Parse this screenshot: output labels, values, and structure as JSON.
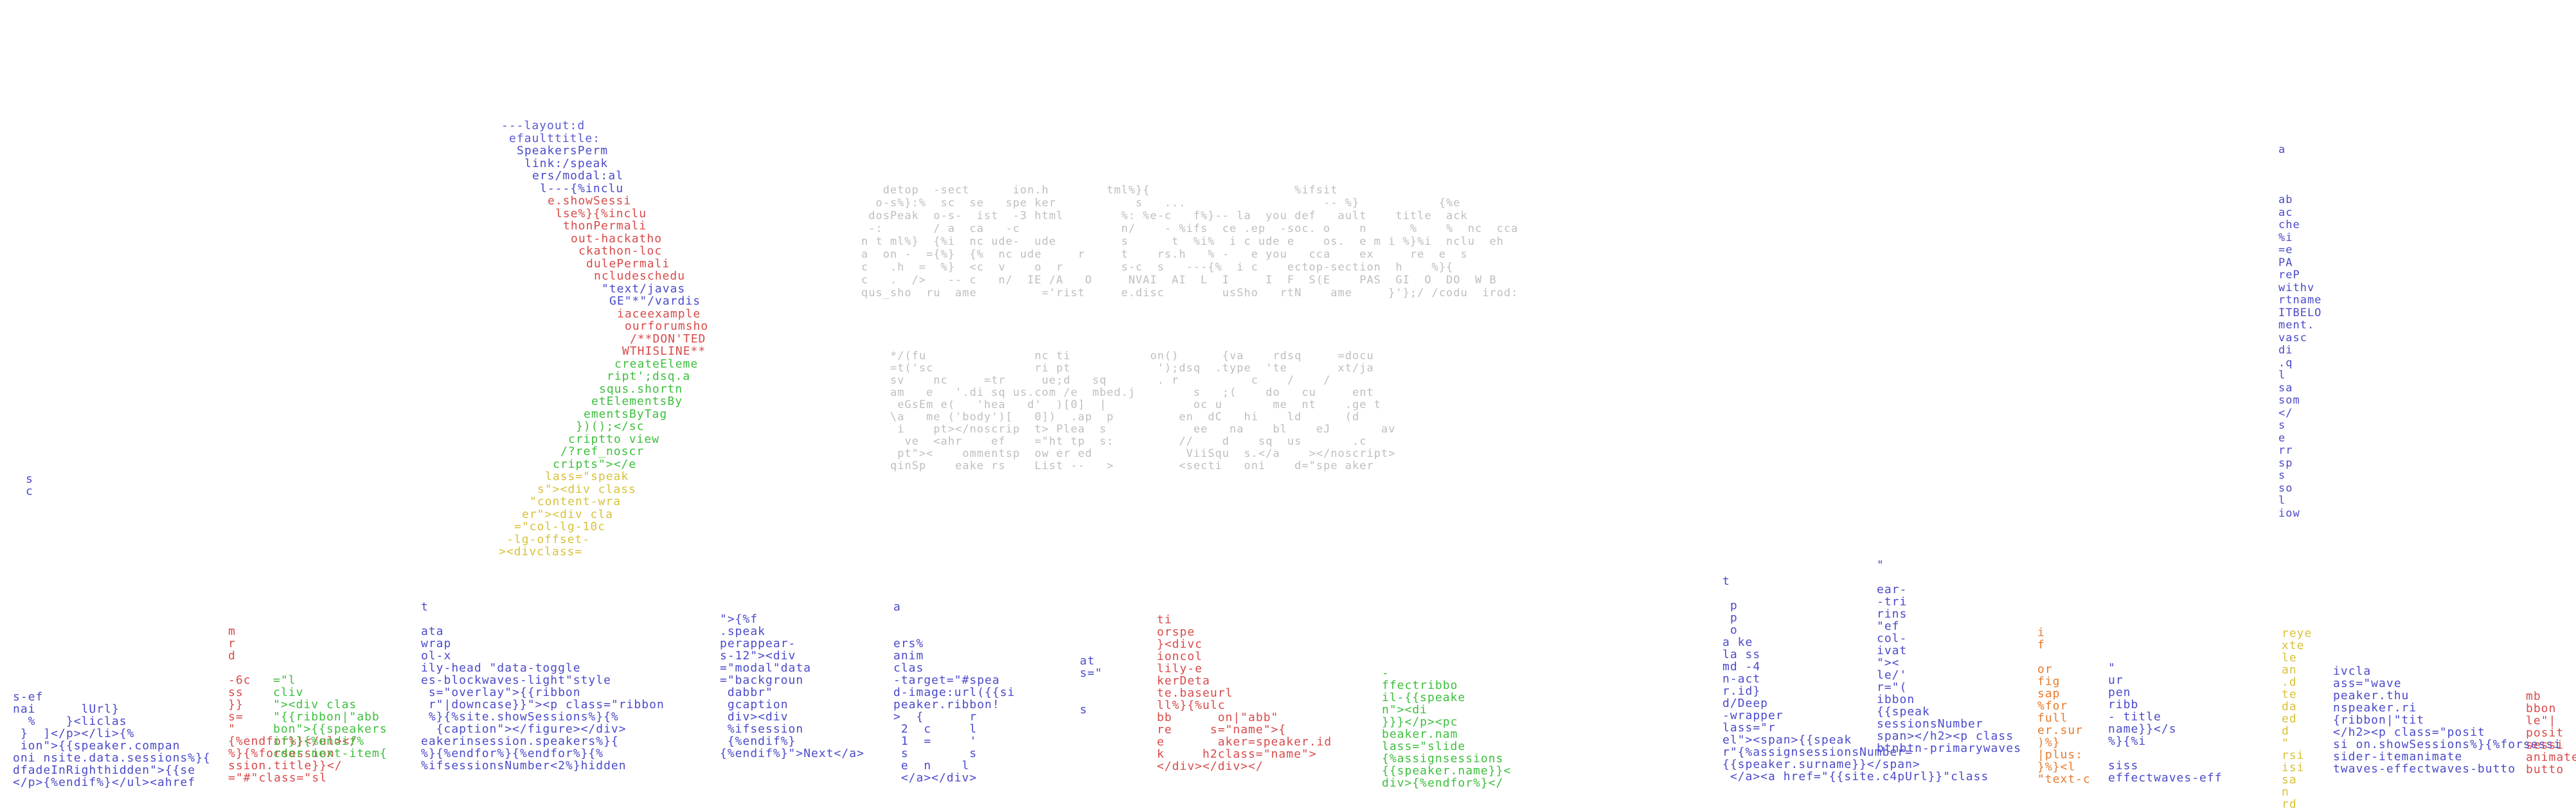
{
  "art": {
    "left_letters": "s\nc",
    "diagonal_code": [
      "---layout:d",
      "efaulttitle:",
      "SpeakersPerm",
      "link:/speak",
      "ers/modal:al",
      "l---{%inclu",
      "e.showSessi",
      "lse%}{%inclu",
      "thonPermali",
      "out-hackatho",
      "ckathon-loc",
      "dulePermali",
      "ncludeschedu",
      "\"text/javas",
      "GE\"*\"/vardis",
      "iaceexample",
      "ourforumsho",
      "/**DON'TED",
      "WTHISLINE**",
      "createEleme",
      "ript';dsq.a",
      "squs.shortn",
      "etElementsBy",
      "ementsByTag",
      "})();</sc",
      "criptto view",
      "/?ref_noscr",
      "cripts\"></e",
      "lass=\"speak",
      "s\"><div class",
      "\"content-wra",
      "er\"><div cla",
      "=\"col-lg-10c",
      "-lg-offset-",
      "><divclass="
    ],
    "block_top": [
      "   detop  -sect      ion.h        tml%}{                    %ifsit",
      "  o-s%}:%  sc  se   spe ker           s   ...                   -- %}           {%e",
      " dosPeak  o-s-  ist  -3 html        %: %e-c   f%}-- la  you def   ault    title  ack",
      " -:       / a  ca   -c              n/    - %ifs  ce .ep  -soc. o    n      %    %  nc  cca",
      "n t ml%}  {%i  nc ude-  ude         s      t  %i%  i c ude e    os.  e m i %}%i  nclu  eh",
      "a  on -  ={%}  {%  nc ude     r     t    rs.h   % -   e you   cca    ex     re  e  s",
      "c   .h  =  %}  <c  v    o  r        s-c  s   ---{%  i c    ectop-section  h    %}{",
      "c   .  />   -- c   n/  IE /A   O     NVAI  AI  L  I     I  F  S(E    PAS  GI  O  DO  W B",
      "qus_sho  ru  ame         ='rist     e.disc        usSho   rtN    ame     }'};/ /codu  irod:"
    ],
    "block_bottom": [
      "*/(fu               nc ti           on()      {va    rdsq     =docu",
      "=t('sc              ri pt            ');dsq  .type  'te       xt/ja",
      "sv    nc     =tr     ue;d   sq       . r          c    /    /",
      "am   e   '.di sq us.com /e  mbed.j        s   ;(    do   cu     ent",
      " eGsEm e(   'hea   d'  )[0]  |            oc u       me  nt    .ge t",
      "\\a   me ('body')[   0])  .ap  p         en  dC   hi    ld      (d",
      " i    pt></noscrip  t> Plea  s            ee   na    bl    eJ       av",
      "  ve  <ahr    ef    =\"ht tp  s:         //    d    sq  us       .c",
      " pt\"><    ommentsp  ow er ed             ViiSqu  s.</a    ></noscript>",
      "qinSp    eake rs    List --   >         <secti   oni    d=\"spe aker"
    ],
    "right_column": "a\n\n\n\nab\nac\nche\n%i\n=e\nPA\nreP\nwithv\nrtname\nITBELO\nment.\nvasc\ndi\n.q\nl\nsa\nsom\n</\ns\ne\nrr\nsp\ns\nso\nl\niow",
    "footer_cols": {
      "c1": "s-ef\nnai      lUrl}\n  %    }<liclas\n }  ]</p></li>{%\n ion\">{{speaker.compan\noni nsite.data.sessions%}{\ndfadeInRighthidden\">{{se\n</p>{%endif%}</ul><ahref",
      "c2": "\n\nm\nr\nd\n\n-6c\nss\n}}\ns=\n\"\n{%endfor%}</ul></\n%}{%forsession\nssion.title}}</\n=\"#\"class=\"sl",
      "c3": "\n\n\n\n\n\n=\"l\ncliv\n\"><div clas\n\"{{ribbon|\"abb\nbon\">{{speakers\nif}}{%endif%\ncdor-next-item{",
      "c4": "t\n\nata\nwrap\nol-x\nily-head \"data-toggle\nes-blockwaves-light\"style\n s=\"overlay\">{{ribbon\n r\"|downcase}}\"><p class=\"ribbon\n %}{%site.showSessions%}{%\n  {caption\"></figure></div>\neakerinsession.speakers%}{\n%}{%endfor%}{%endfor%}{%\n%ifsessionsNumber<2%}hidden",
      "c5": "\n\">{%f\n.speak\nperappear-\ns-12\"><div\n=\"modal\"data\n=\"backgroun\n dabbr\"\n gcaption\n div><div\n %ifsession\n {%endif%}\n{%endif%}\">Next</a>",
      "c6": "a\n\n\ners%\nanim\nclas\n-target=\"#spea\nd-image:url({{si\npeaker.ribbon!\n>  {      r\n 2  c     l\n 1  =     '\n s        s\n e  n    l\n </a></div>",
      "c7": "\nat\ns=\"\n\n\ns\n\n\n\n\n\n\n\n",
      "c8": "ti\norspe\n}<divc\nioncol\nlily-e\nkerDeta\nte.baseurl\nll%}{%ulc\nbb      on|\"abb\"\nre     s=\"name\">{\ne       aker=speaker.id\nk     h2class=\"name\">\n</div></div></",
      "c9": "\n\n-\nffectribbo\nil-{{speake\nn\"><di\n}}}</p><pc\nbeaker.nam\nlass=\"slide\n{%assignsessions\n{{speaker.name}}<\ndiv>{%endfor%}</",
      "c10": "t\n\n p\n p\n o\na ke\nla ss\nmd -4\nn-act\nr.id}\nd/Deep\n-wrapper\nlass=\"r\nel\"><span>{{speak\nr\"{%assignsessionsNumber=\n{{speaker.surname}}</span>\n </a><a href=\"{{site.c4pUrl}}\"class",
      "c11": "\"\n\near-\n-tri\nrins\n\"ef\ncol-\nivat\n\"><\nle/'\nr=\"(\nibbon\n{{speak\nsessionsNumber\nspan></h2><p class\nbtnbtn-primarywaves",
      "c12": "i\nf\n\nor\nfig\nsap\n%for\nfull\ner.sur\n)%}\n|plus:\n}%}<l\n\"text-c",
      "c13": "\"\nur\npen\nribb\n- title\nname}}</s\n%}{%i\n\nsiss\neffectwaves-eff",
      "c14": "\n\n\n\nreye\nxte\nle\nan\n.d\nte\nda\ned\nd\n\"\nrsi\nisi\nsa\nn\nrd",
      "c15": "ivcla\nass=\"wave\npeaker.thu\nnspeaker.ri\n{ribbon|\"tit\n</h2><p class=\"posit\nsi on.showSessions%}{%forsessi\nsider-itemanimate\ntwaves-effectwaves-butto",
      "c16": "\nmb\nbbon\nle\"|\nposit\nsessi\nanimate\nbutto"
    }
  }
}
